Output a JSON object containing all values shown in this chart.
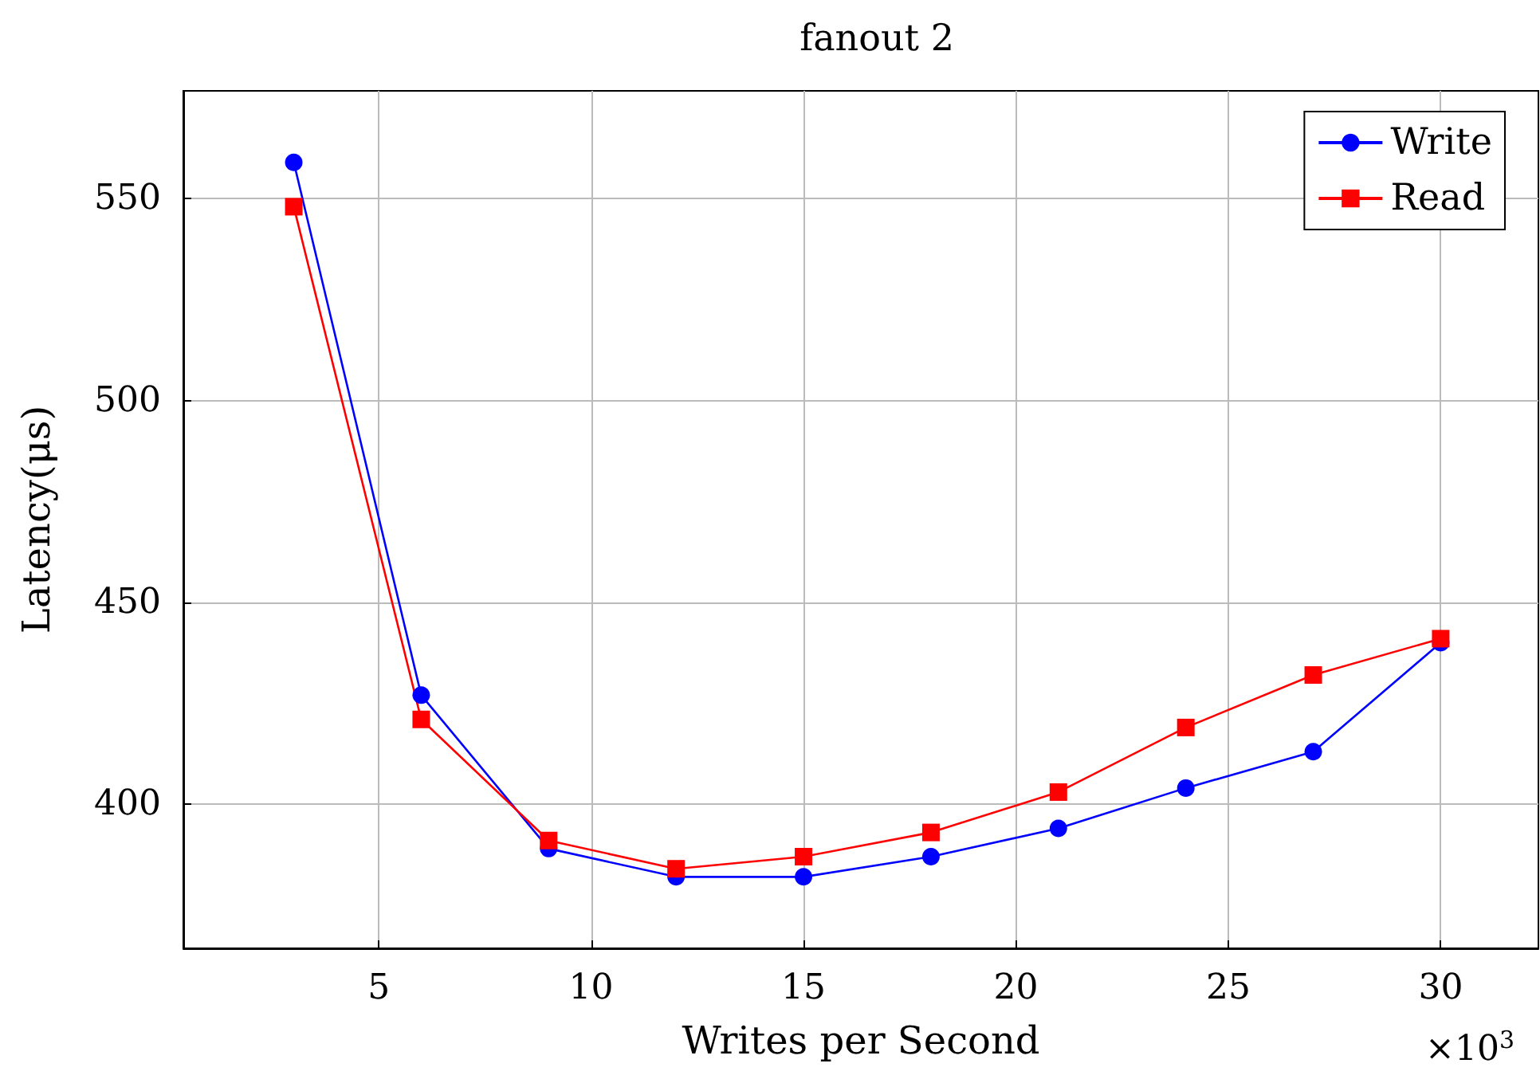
{
  "chart_data": {
    "type": "line",
    "title": "fanout 2",
    "xlabel": "Writes per Second",
    "ylabel": "Latency(μs)",
    "x": [
      3,
      6,
      9,
      12,
      15,
      18,
      21,
      24,
      27,
      30
    ],
    "series": [
      {
        "name": "Write",
        "color": "#0000ff",
        "marker": "circle",
        "values": [
          559,
          427,
          389,
          382,
          382,
          387,
          394,
          404,
          413,
          440
        ]
      },
      {
        "name": "Read",
        "color": "#ff0000",
        "marker": "square",
        "values": [
          548,
          421,
          391,
          384,
          387,
          393,
          403,
          419,
          432,
          441
        ]
      }
    ],
    "xlim": [
      0.4,
      32.3
    ],
    "xticks": [
      5,
      10,
      15,
      20,
      25,
      30
    ],
    "ylim": [
      364.3,
      576.7
    ],
    "yticks": [
      400,
      450,
      500,
      550
    ],
    "grid": true,
    "legend": "top right",
    "line_style": "solid",
    "annotations": [
      "×10$^{3}$"
    ]
  }
}
